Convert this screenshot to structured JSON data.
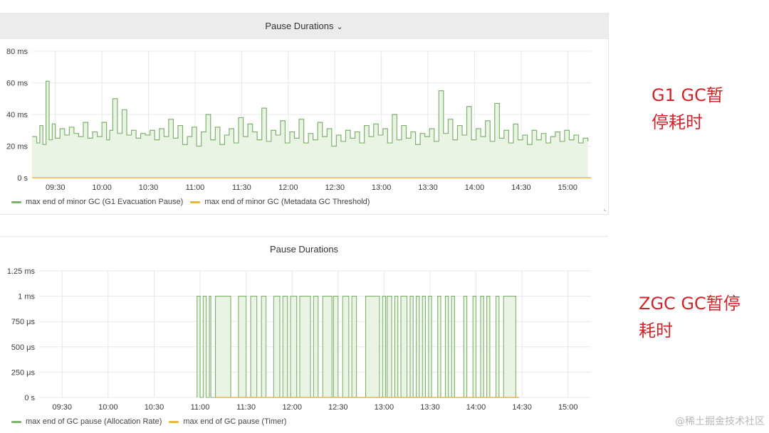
{
  "annotations": {
    "g1_note": "G1  GC暂\n停耗时",
    "zgc_note": "ZGC  GC暂停\n耗时"
  },
  "watermark": "@稀土掘金技术社区",
  "icons": {
    "title_dropdown": "chevron-down-icon",
    "panel_resize": "resize-handle-icon"
  },
  "chart_data": [
    {
      "type": "line",
      "title": "Pause Durations",
      "x_ticks": [
        "09:30",
        "10:00",
        "10:30",
        "11:00",
        "11:30",
        "12:00",
        "12:30",
        "13:00",
        "13:30",
        "14:00",
        "14:30",
        "15:00"
      ],
      "y_ticks": [
        "0 s",
        "20 ms",
        "40 ms",
        "60 ms",
        "80 ms"
      ],
      "ylim_ms": [
        0,
        80
      ],
      "xlim": [
        "09:15",
        "15:15"
      ],
      "grid": true,
      "legend_position": "bottom-left",
      "colors": {
        "series1": "#7eb26d",
        "series2": "#eab839",
        "fill": "#eaf4e4"
      },
      "series": [
        {
          "name": "max end of minor GC (G1 Evacuation Pause)",
          "x": [
            "09:15",
            "09:18",
            "09:20",
            "09:22",
            "09:24",
            "09:26",
            "09:28",
            "09:30",
            "09:33",
            "09:36",
            "09:39",
            "09:42",
            "09:45",
            "09:48",
            "09:51",
            "09:54",
            "09:57",
            "10:00",
            "10:03",
            "10:05",
            "10:07",
            "10:10",
            "10:13",
            "10:16",
            "10:19",
            "10:22",
            "10:25",
            "10:28",
            "10:31",
            "10:34",
            "10:37",
            "10:40",
            "10:43",
            "10:46",
            "10:49",
            "10:52",
            "10:55",
            "10:58",
            "11:01",
            "11:04",
            "11:07",
            "11:10",
            "11:13",
            "11:16",
            "11:19",
            "11:22",
            "11:25",
            "11:28",
            "11:31",
            "11:34",
            "11:37",
            "11:40",
            "11:43",
            "11:46",
            "11:49",
            "11:52",
            "11:55",
            "11:58",
            "12:01",
            "12:04",
            "12:07",
            "12:10",
            "12:13",
            "12:16",
            "12:19",
            "12:22",
            "12:25",
            "12:28",
            "12:31",
            "12:34",
            "12:37",
            "12:40",
            "12:43",
            "12:46",
            "12:49",
            "12:52",
            "12:55",
            "12:58",
            "13:01",
            "13:04",
            "13:07",
            "13:10",
            "13:13",
            "13:16",
            "13:19",
            "13:22",
            "13:25",
            "13:28",
            "13:31",
            "13:34",
            "13:37",
            "13:40",
            "13:43",
            "13:46",
            "13:49",
            "13:52",
            "13:55",
            "13:58",
            "14:01",
            "14:04",
            "14:07",
            "14:10",
            "14:13",
            "14:16",
            "14:19",
            "14:22",
            "14:25",
            "14:28",
            "14:31",
            "14:34",
            "14:37",
            "14:40",
            "14:43",
            "14:46",
            "14:49",
            "14:52",
            "14:55",
            "14:58",
            "15:01",
            "15:04",
            "15:07",
            "15:10",
            "15:13"
          ],
          "values_ms": [
            26,
            22,
            33,
            21,
            61,
            24,
            34,
            25,
            31,
            27,
            32,
            28,
            26,
            35,
            25,
            29,
            26,
            35,
            24,
            30,
            50,
            28,
            43,
            27,
            30,
            25,
            28,
            27,
            30,
            24,
            31,
            26,
            37,
            25,
            33,
            21,
            26,
            32,
            20,
            29,
            40,
            24,
            32,
            21,
            27,
            31,
            22,
            38,
            26,
            34,
            29,
            24,
            44,
            23,
            30,
            27,
            36,
            22,
            29,
            25,
            37,
            22,
            28,
            24,
            35,
            26,
            31,
            20,
            27,
            23,
            30,
            25,
            29,
            22,
            33,
            26,
            34,
            27,
            31,
            22,
            40,
            24,
            33,
            25,
            29,
            21,
            28,
            26,
            31,
            23,
            55,
            28,
            37,
            24,
            33,
            27,
            45,
            24,
            31,
            26,
            36,
            23,
            47,
            25,
            30,
            22,
            34,
            24,
            27,
            21,
            30,
            24,
            28,
            22,
            26,
            29,
            23,
            30,
            24,
            27,
            22,
            25,
            23
          ],
          "color": "#7eb26d"
        },
        {
          "name": "max end of minor GC (Metadata GC Threshold)",
          "x": [
            "09:15",
            "15:15"
          ],
          "values_ms": [
            0,
            0
          ],
          "color": "#eab839"
        }
      ]
    },
    {
      "type": "line",
      "title": "Pause Durations",
      "x_ticks": [
        "09:30",
        "10:00",
        "10:30",
        "11:00",
        "11:30",
        "12:00",
        "12:30",
        "13:00",
        "13:30",
        "14:00",
        "14:30",
        "15:00"
      ],
      "y_ticks": [
        "0 s",
        "250 μs",
        "500 μs",
        "750 μs",
        "1 ms",
        "1.25 ms"
      ],
      "ylim_us": [
        0,
        1250
      ],
      "xlim": [
        "09:15",
        "15:15"
      ],
      "grid": true,
      "legend_position": "bottom-left",
      "colors": {
        "series1": "#7eb26d",
        "series2": "#eab839",
        "fill": "#eaf4e4"
      },
      "series": [
        {
          "name": "max end of GC pause (Allocation Rate)",
          "pulses": [
            [
              "10:58",
              "11:00"
            ],
            [
              "11:02",
              "11:04"
            ],
            [
              "11:06",
              "11:07"
            ],
            [
              "11:10",
              "11:20"
            ],
            [
              "11:25",
              "11:30"
            ],
            [
              "11:33",
              "11:37"
            ],
            [
              "11:40",
              "11:43"
            ],
            [
              "11:48",
              "11:52"
            ],
            [
              "11:54",
              "11:57"
            ],
            [
              "11:59",
              "12:03"
            ],
            [
              "12:05",
              "12:12"
            ],
            [
              "12:14",
              "12:17"
            ],
            [
              "12:20",
              "12:26"
            ],
            [
              "12:27",
              "12:30"
            ],
            [
              "12:33",
              "12:37"
            ],
            [
              "12:39",
              "12:42"
            ],
            [
              "12:48",
              "12:57"
            ],
            [
              "12:59",
              "13:01"
            ],
            [
              "13:02",
              "13:05"
            ],
            [
              "13:07",
              "13:09"
            ],
            [
              "13:11",
              "13:15"
            ],
            [
              "13:17",
              "13:19"
            ],
            [
              "13:21",
              "13:23"
            ],
            [
              "13:25",
              "13:27"
            ],
            [
              "13:29",
              "13:31"
            ],
            [
              "13:35",
              "13:37"
            ],
            [
              "13:40",
              "13:42"
            ],
            [
              "13:44",
              "13:46"
            ],
            [
              "13:52",
              "13:54"
            ],
            [
              "13:58",
              "14:00"
            ],
            [
              "14:03",
              "14:05"
            ],
            [
              "14:07",
              "14:09"
            ],
            [
              "14:13",
              "14:15"
            ],
            [
              "14:18",
              "14:26"
            ]
          ],
          "pulse_value_ms": 1,
          "color": "#7eb26d"
        },
        {
          "name": "max end of GC pause (Timer)",
          "x": [
            "11:10",
            "14:28"
          ],
          "values_ms": [
            0,
            0
          ],
          "color": "#eab839"
        }
      ]
    }
  ]
}
